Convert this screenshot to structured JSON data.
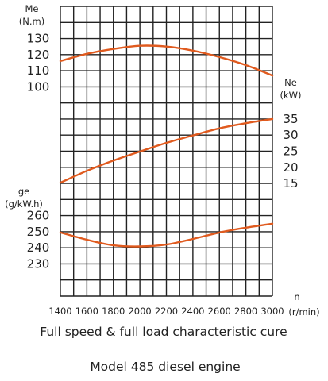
{
  "chart_data": {
    "type": "line",
    "title": "",
    "captions": [
      "Full speed & full load characteristic cure",
      "Model 485 diesel engine"
    ],
    "x": [
      1400,
      1600,
      1800,
      2000,
      2200,
      2400,
      2600,
      2800,
      3000
    ],
    "xlabel": "n",
    "xunit": "(r/min)",
    "xlim": [
      1400,
      3000
    ],
    "grid": true,
    "series": [
      {
        "label": "Me",
        "unit": "(N.m)",
        "values": [
          116,
          120.5,
          123.5,
          125.5,
          125,
          122.5,
          118.5,
          113.5,
          107
        ],
        "ticks": [
          "130",
          "120",
          "110",
          "100"
        ],
        "color": "#e05a1e"
      },
      {
        "label": "Ne",
        "unit": "(kW)",
        "values": [
          15.2,
          18.9,
          22.1,
          24.9,
          27.6,
          29.9,
          32.1,
          33.7,
          35
        ],
        "ticks": [
          "35",
          "30",
          "25",
          "20",
          "15"
        ],
        "color": "#e05a1e"
      },
      {
        "label": "ge",
        "unit": "(g/kW.h)",
        "values": [
          249.5,
          245,
          241.5,
          240.8,
          242,
          245.5,
          249.5,
          252.5,
          255
        ],
        "ticks": [
          "260",
          "250",
          "240",
          "230"
        ],
        "color": "#e05a1e"
      }
    ]
  }
}
